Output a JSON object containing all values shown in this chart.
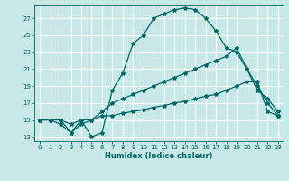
{
  "xlabel": "Humidex (Indice chaleur)",
  "ylabel": "",
  "bg_color": "#c8e8e8",
  "grid_color": "#ffffff",
  "line_color": "#006666",
  "xlim": [
    -0.5,
    23.5
  ],
  "ylim": [
    12.5,
    28.5
  ],
  "xticks": [
    0,
    1,
    2,
    3,
    4,
    5,
    6,
    7,
    8,
    9,
    10,
    11,
    12,
    13,
    14,
    15,
    16,
    17,
    18,
    19,
    20,
    21,
    22,
    23
  ],
  "yticks": [
    13,
    15,
    17,
    19,
    21,
    23,
    25,
    27
  ],
  "curve1_x": [
    0,
    1,
    2,
    3,
    4,
    5,
    6,
    7,
    8,
    9,
    10,
    11,
    12,
    13,
    14,
    15,
    16,
    17,
    18,
    19,
    20,
    21,
    22,
    23
  ],
  "curve1_y": [
    15,
    15,
    15,
    14.5,
    15,
    13,
    13.5,
    18.5,
    20.5,
    24,
    25,
    27,
    27.5,
    28,
    28.2,
    28,
    27,
    25.5,
    23.5,
    23,
    21,
    19,
    17,
    15.5
  ],
  "curve2_x": [
    0,
    1,
    2,
    3,
    4,
    5,
    6,
    7,
    8,
    9,
    10,
    11,
    12,
    13,
    14,
    15,
    16,
    17,
    18,
    19,
    20,
    21,
    22,
    23
  ],
  "curve2_y": [
    15,
    15,
    14.5,
    13.5,
    15,
    15,
    16,
    17,
    17.5,
    18,
    18.5,
    19,
    19.5,
    20,
    20.5,
    21,
    21.5,
    22,
    22.5,
    23.5,
    21,
    18.5,
    17.5,
    16
  ],
  "curve3_x": [
    0,
    1,
    2,
    3,
    4,
    5,
    6,
    7,
    8,
    9,
    10,
    11,
    12,
    13,
    14,
    15,
    16,
    17,
    18,
    19,
    20,
    21,
    22,
    23
  ],
  "curve3_y": [
    15,
    15,
    15,
    13.5,
    14.5,
    15,
    15.5,
    15.5,
    15.8,
    16,
    16.2,
    16.5,
    16.7,
    17,
    17.2,
    17.5,
    17.8,
    18,
    18.5,
    19,
    19.5,
    19.5,
    16,
    15.5
  ]
}
